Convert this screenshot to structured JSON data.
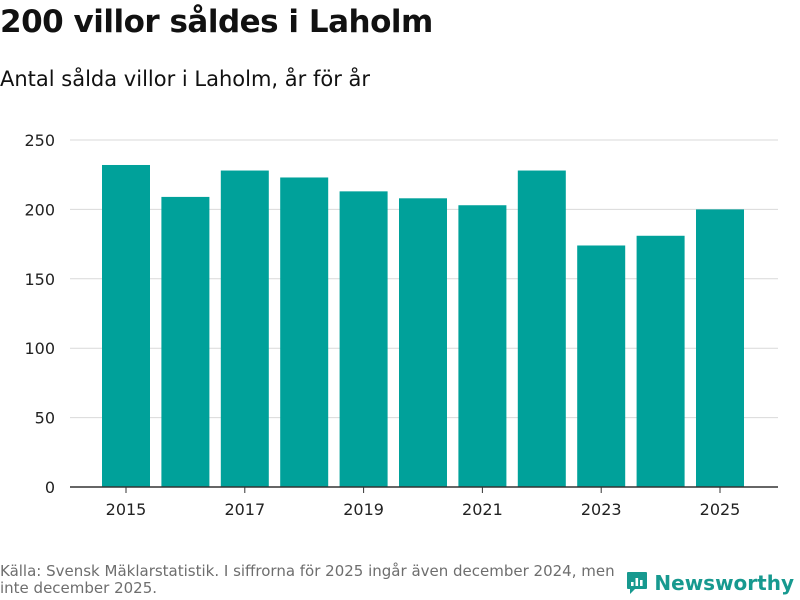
{
  "chart_data": {
    "type": "bar",
    "title": "200 villor såldes i Laholm",
    "subtitle": "Antal sålda villor i Laholm, år för år",
    "categories": [
      "2015",
      "2016",
      "2017",
      "2018",
      "2019",
      "2020",
      "2021",
      "2022",
      "2023",
      "2024",
      "2025"
    ],
    "values": [
      232,
      209,
      228,
      223,
      213,
      208,
      203,
      228,
      174,
      181,
      200
    ],
    "x_tick_labels": [
      "2015",
      "2017",
      "2019",
      "2021",
      "2023",
      "2025"
    ],
    "y_ticks": [
      0,
      50,
      100,
      150,
      200,
      250
    ],
    "ylim": [
      0,
      250
    ],
    "xlabel": "",
    "ylabel": "",
    "grid": true,
    "bar_color": "#00a19a"
  },
  "source": "Källa: Svensk Mäklarstatistik. I siffrorna för 2025 ingår även december 2024, men inte december 2025.",
  "brand": {
    "name": "Newsworthy",
    "color": "#17998f"
  }
}
